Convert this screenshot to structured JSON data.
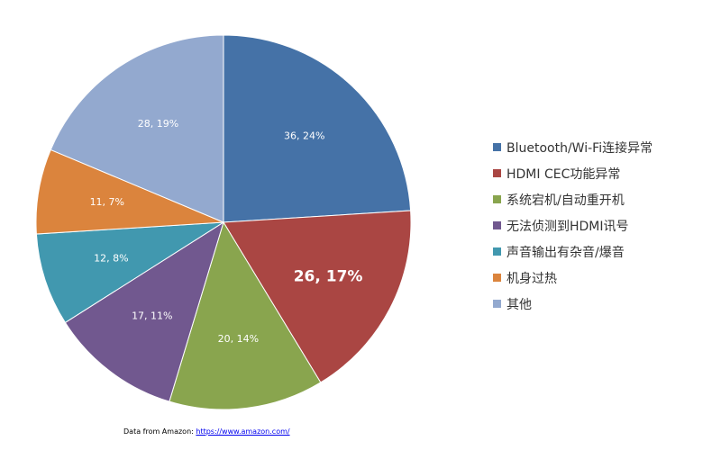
{
  "chart_data": {
    "type": "pie",
    "title": "",
    "categories": [
      "Bluetooth/Wi-Fi连接异常",
      "HDMI CEC功能异常",
      "系统宕机/自动重开机",
      "无法侦测到HDMI讯号",
      "声音输出有杂音/爆音",
      "机身过热",
      "其他"
    ],
    "values": [
      36,
      26,
      20,
      17,
      12,
      11,
      28
    ],
    "labels": [
      "36, 24%",
      "26, 17%",
      "20, 14%",
      "17, 11%",
      "12, 8%",
      "11, 7%",
      "28, 19%"
    ],
    "colors": [
      "#4572a7",
      "#aa4643",
      "#89a54e",
      "#71588f",
      "#4198af",
      "#db843d",
      "#93a9cf"
    ],
    "emphasized_index": 1,
    "legend_position": "right"
  },
  "footer": {
    "prefix": "Data from Amazon: ",
    "link_text": "https://www.amazon.com/"
  }
}
